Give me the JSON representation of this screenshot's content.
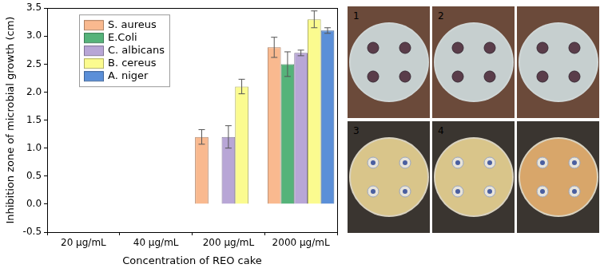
{
  "chart_data": {
    "type": "bar",
    "x_label": "Concentration of REO cake",
    "y_label": "Inhibition zone of microbial growth (cm)",
    "categories": [
      "20 µg/mL",
      "40 µg/mL",
      "200 µg/mL",
      "2000 µg/mL"
    ],
    "series": [
      {
        "name": "S. aureus",
        "color": "#f9b98f",
        "values": [
          0,
          0,
          1.2,
          2.8
        ],
        "errors": [
          0,
          0,
          0.13,
          0.18
        ]
      },
      {
        "name": "E.Coli",
        "color": "#55b37a",
        "values": [
          0,
          0,
          0,
          2.5
        ],
        "errors": [
          0,
          0,
          0,
          0.22
        ]
      },
      {
        "name": "C. albicans",
        "color": "#b8a6d6",
        "values": [
          0,
          0,
          1.2,
          2.7
        ],
        "errors": [
          0,
          0,
          0.2,
          0.05
        ]
      },
      {
        "name": "B. cereus",
        "color": "#fbfb8f",
        "values": [
          0,
          0,
          2.1,
          3.3
        ],
        "errors": [
          0,
          0,
          0.13,
          0.15
        ]
      },
      {
        "name": "A. niger",
        "color": "#5b8fd8",
        "values": [
          0,
          0,
          0,
          3.1
        ],
        "errors": [
          0,
          0,
          0,
          0.05
        ]
      }
    ],
    "ylim": [
      -0.5,
      3.5
    ],
    "yticks": [
      -0.5,
      {
        "value": 0,
        "label": "0.0"
      },
      0.5,
      {
        "value": 1,
        "label": "1.0"
      },
      1.5,
      {
        "value": 2,
        "label": "2.0"
      },
      2.5,
      {
        "value": 3,
        "label": "3.0"
      },
      3.5
    ],
    "grid": false,
    "legend": "upper left"
  },
  "photos": {
    "panels": [
      "1",
      "2",
      null,
      "3",
      "4",
      null
    ]
  }
}
